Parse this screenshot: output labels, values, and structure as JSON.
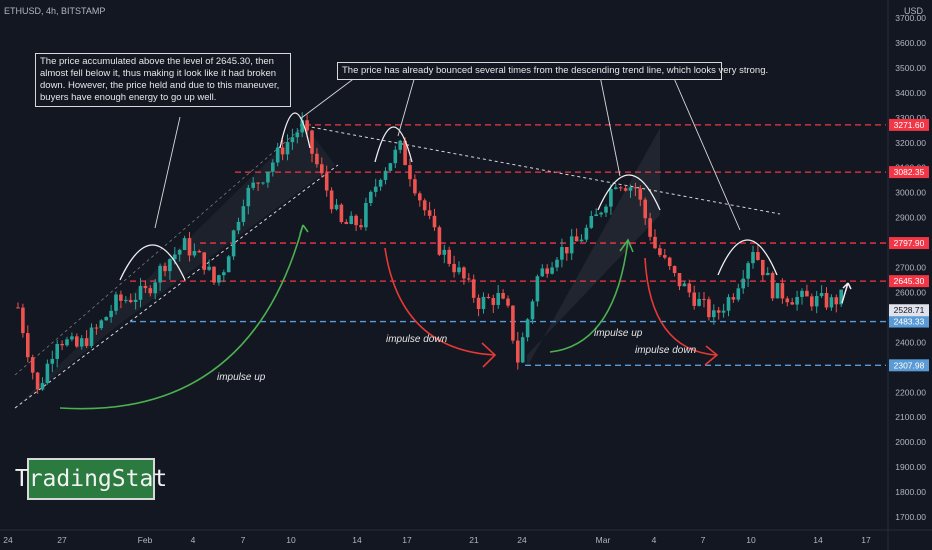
{
  "header": {
    "title": "ETHUSD, 4h, BITSTAMP",
    "currency": "USD"
  },
  "logo": {
    "text": "TradingStat"
  },
  "annotations": {
    "note_left": "The price accumulated above the level of 2645.30, then almost fell below it, thus making it look like it had broken down. However, the price held and due to this maneuver, buyers have enough energy to go up well.",
    "note_top": "The price has already bounced several times from the descending trend line, which looks very strong.",
    "impulse_up_1": "impulse up",
    "impulse_down_1": "impulse down",
    "impulse_up_2": "impulse up",
    "impulse_down_2": "impulse down"
  },
  "colors": {
    "background": "#131722",
    "up": "#26a69a",
    "down": "#ef5350",
    "resistance": "#f23645",
    "support": "#5b9bd5",
    "impulse_up": "#4caf50",
    "impulse_down": "#e53935"
  },
  "chart_data": {
    "type": "candlestick",
    "symbol": "ETHUSD",
    "timeframe": "4h",
    "exchange": "BITSTAMP",
    "ylim": [
      1650,
      3750
    ],
    "y_ticks": [
      1700,
      1800,
      1900,
      2000,
      2100,
      2200,
      2300,
      2400,
      2500,
      2600,
      2700,
      2800,
      2900,
      3000,
      3100,
      3200,
      3300,
      3400,
      3500,
      3600,
      3700
    ],
    "x_tick_labels": [
      "24",
      "27",
      "Feb",
      "4",
      "7",
      "10",
      "14",
      "17",
      "21",
      "24",
      "Mar",
      "4",
      "7",
      "10",
      "14",
      "17"
    ],
    "current_price": 2528.71,
    "levels": [
      {
        "value": 3271.6,
        "kind": "resistance",
        "label": "3271.60"
      },
      {
        "value": 3082.35,
        "kind": "resistance",
        "label": "3082.35"
      },
      {
        "value": 2797.9,
        "kind": "resistance",
        "label": "2797.90"
      },
      {
        "value": 2645.3,
        "kind": "resistance",
        "label": "2645.30"
      },
      {
        "value": 2483.33,
        "kind": "support",
        "label": "2483.33"
      },
      {
        "value": 2307.98,
        "kind": "support",
        "label": "2307.98"
      }
    ],
    "price_path": [
      [
        0,
        2540
      ],
      [
        2,
        2200
      ],
      [
        4,
        2420
      ],
      [
        6,
        2380
      ],
      [
        8,
        2450
      ],
      [
        10,
        2560
      ],
      [
        13,
        2600
      ],
      [
        15,
        2720
      ],
      [
        17,
        2790
      ],
      [
        19,
        2720
      ],
      [
        20,
        2640
      ],
      [
        21,
        2700
      ],
      [
        23,
        2980
      ],
      [
        25,
        3070
      ],
      [
        27,
        3180
      ],
      [
        29,
        3270
      ],
      [
        30,
        3160
      ],
      [
        31,
        3060
      ],
      [
        33,
        2870
      ],
      [
        35,
        2880
      ],
      [
        37,
        3080
      ],
      [
        39,
        3180
      ],
      [
        41,
        2980
      ],
      [
        43,
        2780
      ],
      [
        45,
        2680
      ],
      [
        47,
        2560
      ],
      [
        49,
        2580
      ],
      [
        50,
        2520
      ],
      [
        51,
        2330
      ],
      [
        53,
        2660
      ],
      [
        55,
        2760
      ],
      [
        57,
        2800
      ],
      [
        59,
        2900
      ],
      [
        61,
        3050
      ],
      [
        63,
        3020
      ],
      [
        65,
        2780
      ],
      [
        67,
        2660
      ],
      [
        69,
        2580
      ],
      [
        71,
        2500
      ],
      [
        73,
        2600
      ],
      [
        75,
        2780
      ],
      [
        77,
        2610
      ],
      [
        79,
        2580
      ],
      [
        81,
        2570
      ],
      [
        83,
        2560
      ],
      [
        84,
        2580
      ]
    ],
    "grid": false,
    "legend": "none"
  }
}
